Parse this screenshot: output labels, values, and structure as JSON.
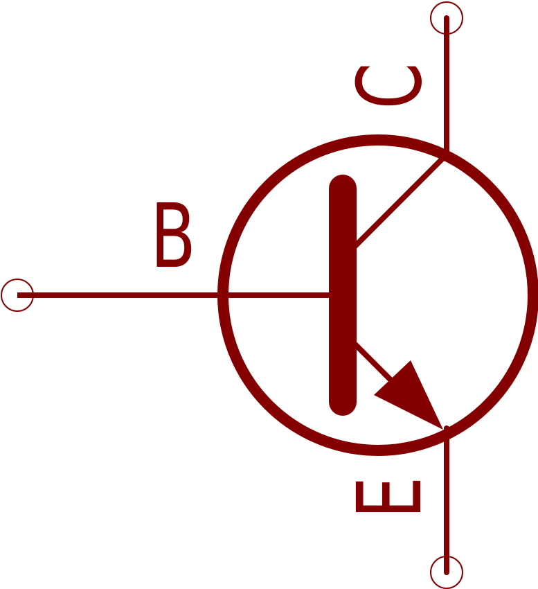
{
  "symbol": {
    "color": "#840000",
    "pins": {
      "base": {
        "label": "B"
      },
      "collector": {
        "label": "C"
      },
      "emitter": {
        "label": "E"
      }
    }
  }
}
